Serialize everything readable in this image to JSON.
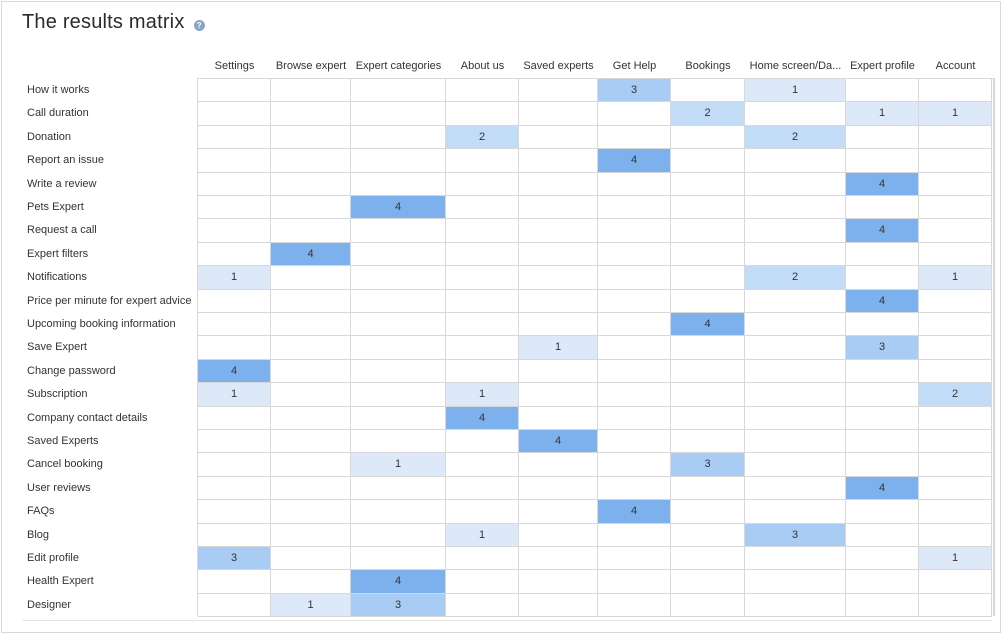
{
  "page": {
    "title": "The results matrix",
    "help_icon": "question-icon"
  },
  "columns": [
    "Settings",
    "Browse expert",
    "Expert categories",
    "About us",
    "Saved experts",
    "Get Help",
    "Bookings",
    "Home screen/Da...",
    "Expert profile",
    "Account"
  ],
  "rows": [
    {
      "label": "How it works",
      "values": [
        "",
        "",
        "",
        "",
        "",
        "3",
        "",
        "1",
        "",
        ""
      ]
    },
    {
      "label": "Call duration",
      "values": [
        "",
        "",
        "",
        "",
        "",
        "",
        "2",
        "",
        "1",
        "1"
      ]
    },
    {
      "label": "Donation",
      "values": [
        "",
        "",
        "",
        "2",
        "",
        "",
        "",
        "2",
        "",
        ""
      ]
    },
    {
      "label": "Report an issue",
      "values": [
        "",
        "",
        "",
        "",
        "",
        "4",
        "",
        "",
        "",
        ""
      ]
    },
    {
      "label": "Write a review",
      "values": [
        "",
        "",
        "",
        "",
        "",
        "",
        "",
        "",
        "4",
        ""
      ]
    },
    {
      "label": "Pets Expert",
      "values": [
        "",
        "",
        "4",
        "",
        "",
        "",
        "",
        "",
        "",
        ""
      ]
    },
    {
      "label": "Request a call",
      "values": [
        "",
        "",
        "",
        "",
        "",
        "",
        "",
        "",
        "4",
        ""
      ]
    },
    {
      "label": "Expert filters",
      "values": [
        "",
        "4",
        "",
        "",
        "",
        "",
        "",
        "",
        "",
        ""
      ]
    },
    {
      "label": "Notifications",
      "values": [
        "1",
        "",
        "",
        "",
        "",
        "",
        "",
        "2",
        "",
        "1"
      ]
    },
    {
      "label": "Price per minute for expert advice",
      "values": [
        "",
        "",
        "",
        "",
        "",
        "",
        "",
        "",
        "4",
        ""
      ]
    },
    {
      "label": "Upcoming booking information",
      "values": [
        "",
        "",
        "",
        "",
        "",
        "",
        "4",
        "",
        "",
        ""
      ]
    },
    {
      "label": "Save Expert",
      "values": [
        "",
        "",
        "",
        "",
        "1",
        "",
        "",
        "",
        "3",
        ""
      ]
    },
    {
      "label": "Change password",
      "values": [
        "4",
        "",
        "",
        "",
        "",
        "",
        "",
        "",
        "",
        ""
      ]
    },
    {
      "label": "Subscription",
      "values": [
        "1",
        "",
        "",
        "1",
        "",
        "",
        "",
        "",
        "",
        "2"
      ]
    },
    {
      "label": "Company contact details",
      "values": [
        "",
        "",
        "",
        "4",
        "",
        "",
        "",
        "",
        "",
        ""
      ]
    },
    {
      "label": "Saved Experts",
      "values": [
        "",
        "",
        "",
        "",
        "4",
        "",
        "",
        "",
        "",
        ""
      ]
    },
    {
      "label": "Cancel booking",
      "values": [
        "",
        "",
        "1",
        "",
        "",
        "",
        "3",
        "",
        "",
        ""
      ]
    },
    {
      "label": "User reviews",
      "values": [
        "",
        "",
        "",
        "",
        "",
        "",
        "",
        "",
        "4",
        ""
      ]
    },
    {
      "label": "FAQs",
      "values": [
        "",
        "",
        "",
        "",
        "",
        "4",
        "",
        "",
        "",
        ""
      ]
    },
    {
      "label": "Blog",
      "values": [
        "",
        "",
        "",
        "1",
        "",
        "",
        "",
        "3",
        "",
        ""
      ]
    },
    {
      "label": "Edit profile",
      "values": [
        "3",
        "",
        "",
        "",
        "",
        "",
        "",
        "",
        "",
        "1"
      ]
    },
    {
      "label": "Health Expert",
      "values": [
        "",
        "",
        "4",
        "",
        "",
        "",
        "",
        "",
        "",
        ""
      ]
    },
    {
      "label": "Designer",
      "values": [
        "",
        "1",
        "3",
        "",
        "",
        "",
        "",
        "",
        "",
        ""
      ]
    }
  ],
  "colors": {
    "level_1": "#dde9f8",
    "level_2": "#c2dbf6",
    "level_3": "#a8ccf3",
    "level_4": "#7db1ee",
    "grid": "#d8d8d8"
  }
}
